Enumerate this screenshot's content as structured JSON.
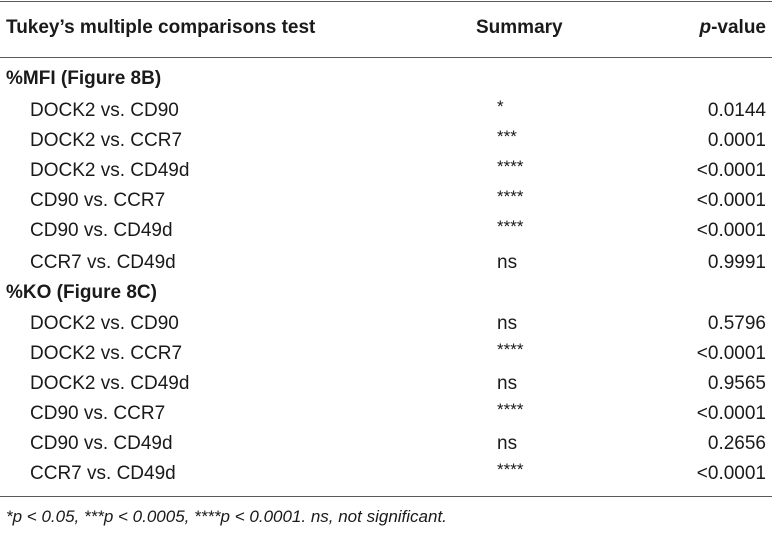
{
  "header": {
    "test_label": "Tukey’s multiple comparisons test",
    "summary_label": "Summary",
    "pvalue_italic": "p",
    "pvalue_suffix": "-value"
  },
  "sections": [
    {
      "title": "%MFI (Figure 8B)",
      "rows": [
        {
          "comparison": "DOCK2 vs. CD90",
          "summary": "*",
          "pvalue": "0.0144"
        },
        {
          "comparison": "DOCK2 vs. CCR7",
          "summary": "***",
          "pvalue": "0.0001"
        },
        {
          "comparison": "DOCK2 vs. CD49d",
          "summary": "****",
          "pvalue": "<0.0001"
        },
        {
          "comparison": "CD90 vs. CCR7",
          "summary": "****",
          "pvalue": "<0.0001"
        },
        {
          "comparison": "CD90 vs. CD49d",
          "summary": "****",
          "pvalue": "<0.0001"
        },
        {
          "comparison": "CCR7 vs. CD49d",
          "summary": "ns",
          "pvalue": "0.9991"
        }
      ]
    },
    {
      "title": "%KO (Figure 8C)",
      "rows": [
        {
          "comparison": "DOCK2 vs. CD90",
          "summary": "ns",
          "pvalue": "0.5796"
        },
        {
          "comparison": "DOCK2 vs. CCR7",
          "summary": "****",
          "pvalue": "<0.0001"
        },
        {
          "comparison": "DOCK2 vs. CD49d",
          "summary": "ns",
          "pvalue": "0.9565"
        },
        {
          "comparison": "CD90 vs. CCR7",
          "summary": "****",
          "pvalue": "<0.0001"
        },
        {
          "comparison": "CD90 vs. CD49d",
          "summary": "ns",
          "pvalue": "0.2656"
        },
        {
          "comparison": "CCR7 vs. CD49d",
          "summary": "****",
          "pvalue": "<0.0001"
        }
      ]
    }
  ],
  "footnote": "*p < 0.05, ***p < 0.0005, ****p < 0.0001. ns, not significant."
}
